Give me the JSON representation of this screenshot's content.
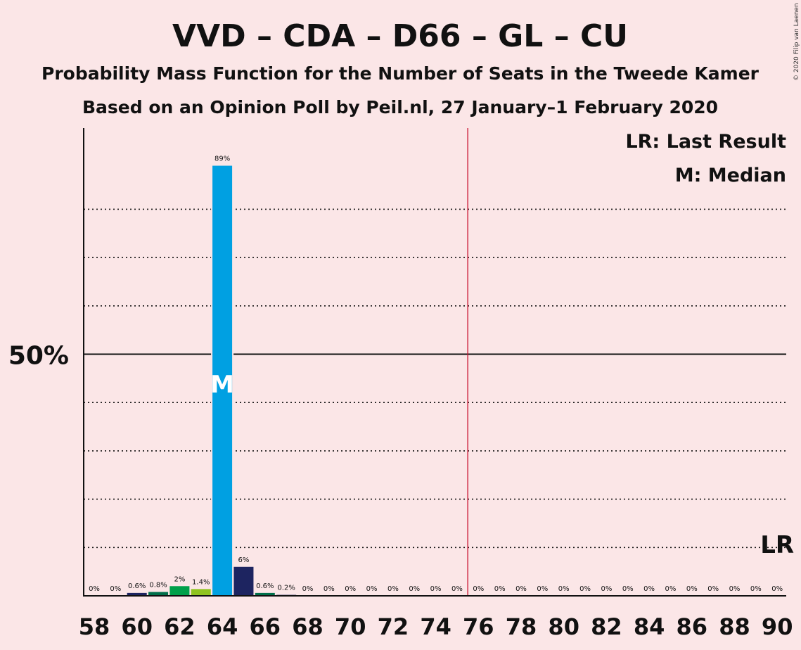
{
  "copyright": "© 2020 Filip van Laenen",
  "chart_data": {
    "type": "bar",
    "title": "VVD – CDA – D66 – GL – CU",
    "subtitle": "Probability Mass Function for the Number of Seats in the Tweede Kamer",
    "subtitle2": "Based on an Opinion Poll by Peil.nl, 27 January–1 February 2020",
    "x": [
      58,
      59,
      60,
      61,
      62,
      63,
      64,
      65,
      66,
      67,
      68,
      69,
      70,
      71,
      72,
      73,
      74,
      75,
      76,
      77,
      78,
      79,
      80,
      81,
      82,
      83,
      84,
      85,
      86,
      87,
      88,
      89,
      90
    ],
    "values": [
      0,
      0,
      0.6,
      0.8,
      2,
      1.4,
      89,
      6,
      0.6,
      0.2,
      0,
      0,
      0,
      0,
      0,
      0,
      0,
      0,
      0,
      0,
      0,
      0,
      0,
      0,
      0,
      0,
      0,
      0,
      0,
      0,
      0,
      0,
      0
    ],
    "labels": [
      "0%",
      "0%",
      "0.6%",
      "0.8%",
      "2%",
      "1.4%",
      "89%",
      "6%",
      "0.6%",
      "0.2%",
      "0%",
      "0%",
      "0%",
      "0%",
      "0%",
      "0%",
      "0%",
      "0%",
      "0%",
      "0%",
      "0%",
      "0%",
      "0%",
      "0%",
      "0%",
      "0%",
      "0%",
      "0%",
      "0%",
      "0%",
      "0%",
      "0%",
      "0%"
    ],
    "colors": [
      "#1d2460",
      "#1d2460",
      "#1d2460",
      "#006f4a",
      "#00a04a",
      "#8fc31f",
      "#00a0e2",
      "#1d2460",
      "#006f4a",
      "#1d2460",
      "#1d2460",
      "#1d2460",
      "#1d2460",
      "#1d2460",
      "#1d2460",
      "#1d2460",
      "#1d2460",
      "#1d2460",
      "#1d2460",
      "#1d2460",
      "#1d2460",
      "#1d2460",
      "#1d2460",
      "#1d2460",
      "#1d2460",
      "#1d2460",
      "#1d2460",
      "#1d2460",
      "#1d2460",
      "#1d2460",
      "#1d2460",
      "#1d2460",
      "#1d2460"
    ],
    "xticks": [
      58,
      60,
      62,
      64,
      66,
      68,
      70,
      72,
      74,
      76,
      78,
      80,
      82,
      84,
      86,
      88,
      90
    ],
    "ylim": [
      0,
      100
    ],
    "gridlines": [
      10,
      20,
      30,
      40,
      60,
      70,
      80
    ],
    "ytick_label": "50%",
    "ytick_value": 50,
    "majority_line": 75.5,
    "median_seat": 64,
    "median_marker": "M",
    "last_result_seat": 90,
    "last_result_marker": "LR",
    "legend": [
      "LR: Last Result",
      "M: Median"
    ],
    "legend_position": "top-right"
  }
}
